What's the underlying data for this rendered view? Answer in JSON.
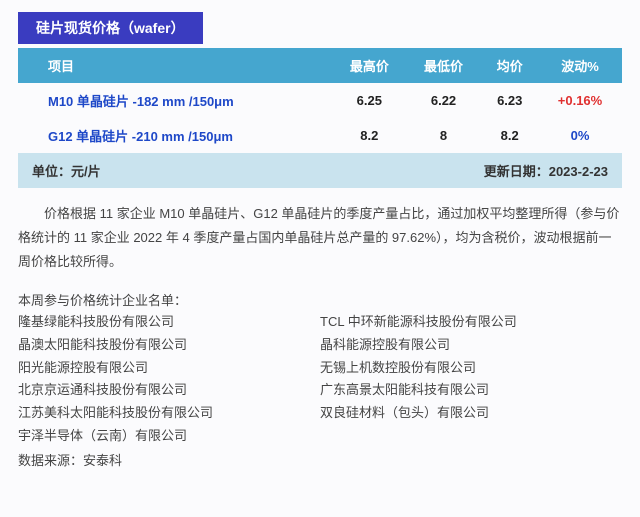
{
  "colors": {
    "titlebar_bg": "#3a3cc0",
    "header_bg": "#45a6cf",
    "footer_bg": "#c9e3ee",
    "product_link": "#1e48c8",
    "fluct_positive": "#e03030",
    "fluct_zero": "#1e48c8",
    "page_bg": "#fbfbfd"
  },
  "title": "硅片现货价格（wafer）",
  "columns": [
    "项目",
    "最高价",
    "最低价",
    "均价",
    "波动%"
  ],
  "rows": [
    {
      "product": "M10 单晶硅片 -182 mm /150μm",
      "high": "6.25",
      "low": "6.22",
      "avg": "6.23",
      "fluct": "+0.16%",
      "fluct_kind": "pos"
    },
    {
      "product": "G12 单晶硅片 -210 mm /150μm",
      "high": "8.2",
      "low": "8",
      "avg": "8.2",
      "fluct": "0%",
      "fluct_kind": "zero"
    }
  ],
  "unit_label": "单位：元/片",
  "update_label": "更新日期：2023-2-23",
  "explain_html": "价格根据 11 家企业 M10 单晶硅片、G12 单晶硅片的季度产量占比，通过加权平均整理所得（参与价格统计的 11 家企业 2022 年 4 季度产量占国内单晶硅片总产量的 97.62%），均为含税价，波动根据前一周价格比较所得。",
  "companies_label": "本周参与价格统计企业名单：",
  "companies_left": [
    "隆基绿能科技股份有限公司",
    "晶澳太阳能科技股份有限公司",
    "阳光能源控股有限公司",
    "北京京运通科技股份有限公司",
    "江苏美科太阳能科技股份有限公司",
    "宇泽半导体（云南）有限公司"
  ],
  "companies_right": [
    "TCL 中环新能源科技股份有限公司",
    "晶科能源控股有限公司",
    "无锡上机数控股份有限公司",
    "广东高景太阳能科技有限公司",
    "双良硅材料（包头）有限公司"
  ],
  "source_label": "数据来源：安泰科"
}
